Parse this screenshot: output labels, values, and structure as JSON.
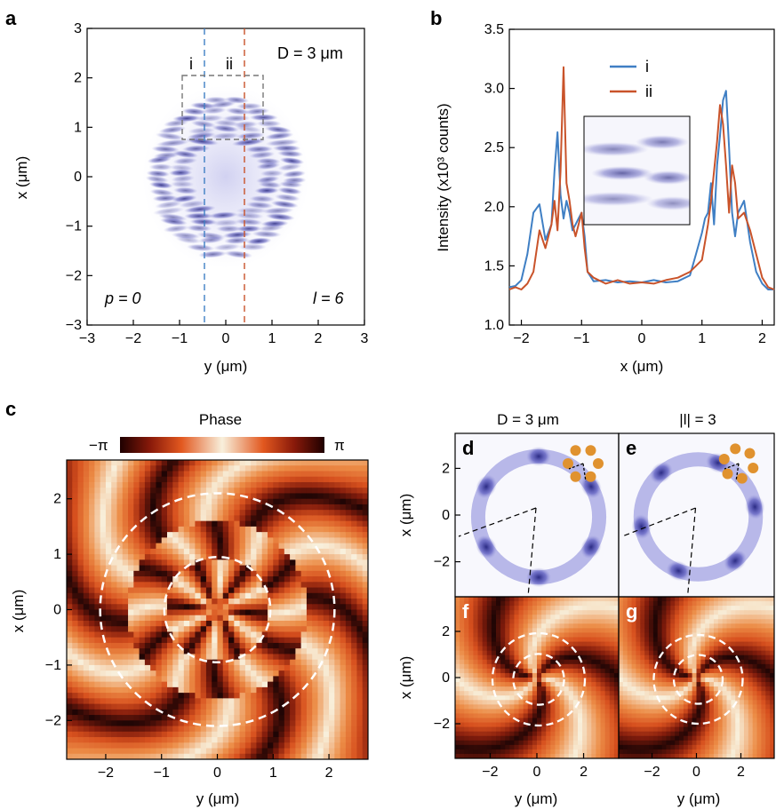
{
  "panels": {
    "a": {
      "letter": "a",
      "d_label": "D = 3 μm",
      "p_label": "p = 0",
      "l_label": "l = 6",
      "cut_i": "i",
      "cut_ii": "ii",
      "xlabel": "y (μm)",
      "ylabel": "x (μm)",
      "xticks": [
        "−3",
        "−2",
        "−1",
        "0",
        "1",
        "2",
        "3"
      ],
      "yticks": [
        "3",
        "2",
        "1",
        "0",
        "−1",
        "−2",
        "−3"
      ]
    },
    "b": {
      "letter": "b",
      "xlabel": "x (μm)",
      "ylabel": "Intensity (x10³ counts)",
      "xticks": [
        "−2",
        "−1",
        "0",
        "1",
        "2"
      ],
      "yticks": [
        "3.5",
        "3.0",
        "2.5",
        "2.0",
        "1.5",
        "1.0"
      ]
    },
    "c": {
      "letter": "c",
      "colorbar_title": "Phase",
      "colorbar_min": "−π",
      "colorbar_max": "π",
      "xlabel": "y (μm)",
      "ylabel": "x (μm)",
      "xticks": [
        "−2",
        "−1",
        "0",
        "1",
        "2"
      ],
      "yticks": [
        "2",
        "1",
        "0",
        "−1",
        "−2"
      ]
    },
    "d": {
      "letter": "d",
      "title": "D = 3 μm",
      "ylabel": "x (μm)",
      "yticks": [
        "2",
        "0",
        "−2"
      ]
    },
    "e": {
      "letter": "e",
      "title": "|l| = 3"
    },
    "f": {
      "letter": "f",
      "ylabel": "x (μm)",
      "yticks": [
        "2",
        "0",
        "−2"
      ],
      "xlabel": "y (μm)",
      "xticks": [
        "−2",
        "0",
        "2"
      ]
    },
    "g": {
      "letter": "g",
      "xlabel": "y (μm)",
      "xticks": [
        "−2",
        "0",
        "2"
      ]
    }
  },
  "colors": {
    "series_i": "#3f7fc4",
    "series_ii": "#c9532a",
    "density": "#2f2fa0",
    "pillar": "#e0922f",
    "phase_light": "#f7ecd6",
    "phase_dark": "#2b0a0a",
    "phase_mid": "#e2581f"
  },
  "chart_data": [
    {
      "panel": "a",
      "type": "heatmap",
      "title": "",
      "xlabel": "y (μm)",
      "ylabel": "x (μm)",
      "xlim": [
        -3,
        3
      ],
      "ylim": [
        -3,
        3
      ],
      "ring_outer_radius_um": 1.7,
      "ring_inner_radius_um": 0.7,
      "cut_lines_y_um": {
        "i": -0.28,
        "ii": 0.55
      },
      "zoom_box_um": {
        "y": [
          -0.7,
          0.95
        ],
        "x": [
          0.78,
          2.02
        ]
      }
    },
    {
      "panel": "b",
      "type": "line",
      "title": "",
      "xlabel": "x (μm)",
      "ylabel": "Intensity (x10³ counts)",
      "xlim": [
        -2.2,
        2.2
      ],
      "ylim": [
        1.0,
        3.5
      ],
      "series": [
        {
          "name": "i",
          "x": [
            -2.2,
            -2.1,
            -2.0,
            -1.9,
            -1.8,
            -1.7,
            -1.6,
            -1.5,
            -1.45,
            -1.4,
            -1.35,
            -1.3,
            -1.25,
            -1.2,
            -1.15,
            -1.1,
            -1.05,
            -1.0,
            -0.95,
            -0.9,
            -0.8,
            -0.6,
            -0.4,
            -0.2,
            0.0,
            0.2,
            0.4,
            0.6,
            0.8,
            0.9,
            1.0,
            1.05,
            1.1,
            1.15,
            1.2,
            1.25,
            1.3,
            1.35,
            1.4,
            1.45,
            1.5,
            1.55,
            1.6,
            1.7,
            1.8,
            1.9,
            2.0,
            2.1,
            2.2
          ],
          "values": [
            1.32,
            1.33,
            1.38,
            1.6,
            1.95,
            2.02,
            1.72,
            1.85,
            2.3,
            2.63,
            2.1,
            1.9,
            2.05,
            1.95,
            1.8,
            1.85,
            1.9,
            1.95,
            1.75,
            1.45,
            1.37,
            1.38,
            1.36,
            1.37,
            1.36,
            1.38,
            1.36,
            1.37,
            1.42,
            1.6,
            1.78,
            1.9,
            1.95,
            2.2,
            1.85,
            2.35,
            2.6,
            2.9,
            2.98,
            2.5,
            1.95,
            1.75,
            1.95,
            2.05,
            1.7,
            1.45,
            1.35,
            1.3,
            1.3
          ]
        },
        {
          "name": "ii",
          "x": [
            -2.2,
            -2.1,
            -2.0,
            -1.9,
            -1.8,
            -1.7,
            -1.6,
            -1.5,
            -1.45,
            -1.4,
            -1.35,
            -1.3,
            -1.25,
            -1.2,
            -1.15,
            -1.1,
            -1.05,
            -1.0,
            -0.95,
            -0.9,
            -0.8,
            -0.6,
            -0.4,
            -0.2,
            0.0,
            0.2,
            0.4,
            0.6,
            0.8,
            0.9,
            1.0,
            1.05,
            1.1,
            1.15,
            1.2,
            1.25,
            1.3,
            1.35,
            1.4,
            1.45,
            1.5,
            1.55,
            1.6,
            1.7,
            1.8,
            1.9,
            2.0,
            2.1,
            2.2
          ],
          "values": [
            1.3,
            1.32,
            1.3,
            1.35,
            1.45,
            1.8,
            1.65,
            1.85,
            2.05,
            1.8,
            2.3,
            3.18,
            2.2,
            2.05,
            1.85,
            1.75,
            1.85,
            1.95,
            1.65,
            1.45,
            1.4,
            1.35,
            1.38,
            1.35,
            1.36,
            1.35,
            1.38,
            1.4,
            1.45,
            1.5,
            1.55,
            1.7,
            1.85,
            2.05,
            2.3,
            2.55,
            2.86,
            2.7,
            2.35,
            1.95,
            2.35,
            2.2,
            1.9,
            1.95,
            1.8,
            1.6,
            1.4,
            1.32,
            1.3
          ]
        }
      ]
    },
    {
      "panel": "c",
      "type": "heatmap",
      "title": "",
      "xlabel": "y (μm)",
      "ylabel": "x (μm)",
      "xlim": [
        -2.7,
        2.7
      ],
      "ylim": [
        -2.7,
        2.7
      ],
      "colorbar_range": [
        "−π",
        "π"
      ],
      "dashed_circle_radii_um": [
        0.95,
        2.1
      ]
    },
    {
      "panel": "d",
      "type": "heatmap",
      "title": "",
      "xlim": [
        -3.5,
        3.5
      ],
      "ylim": [
        -3.5,
        3.5
      ],
      "lobes": 6
    },
    {
      "panel": "e",
      "type": "heatmap",
      "title": "",
      "xlim": [
        -3.5,
        3.5
      ],
      "ylim": [
        -3.5,
        3.5
      ],
      "lobes": 6
    },
    {
      "panel": "f",
      "type": "heatmap",
      "title": "",
      "xlim": [
        -3.5,
        3.5
      ],
      "ylim": [
        -3.5,
        3.5
      ],
      "charge": 3,
      "dashed_circle_radii_um": [
        1.1,
        2.0
      ]
    },
    {
      "panel": "g",
      "type": "heatmap",
      "title": "",
      "xlim": [
        -3.5,
        3.5
      ],
      "ylim": [
        -3.5,
        3.5
      ],
      "charge": -3,
      "dashed_circle_radii_um": [
        1.1,
        2.0
      ]
    }
  ]
}
